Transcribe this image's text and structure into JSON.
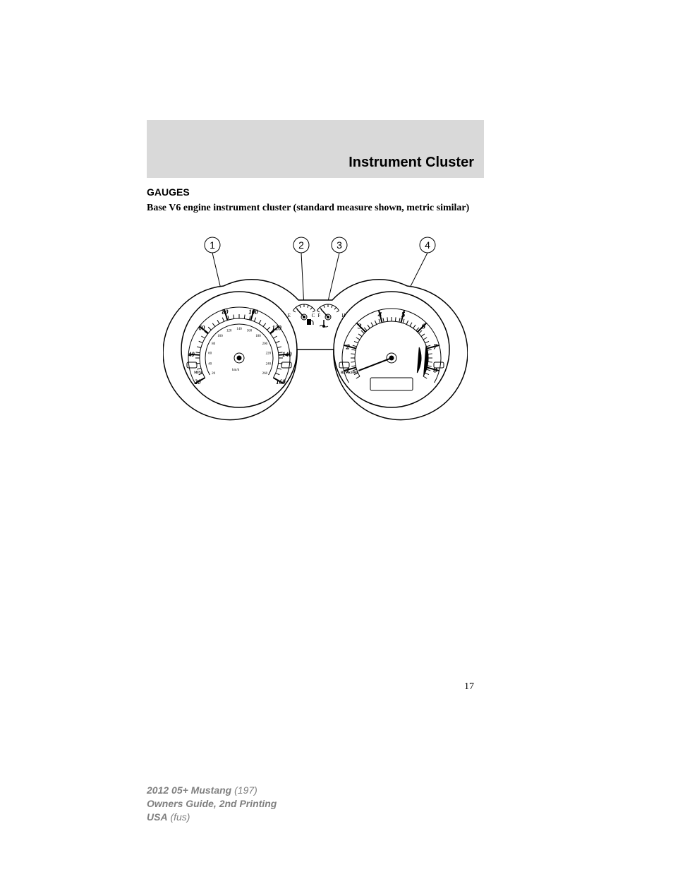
{
  "header": {
    "section_title": "Instrument Cluster"
  },
  "body": {
    "heading": "GAUGES",
    "subtitle": "Base V6 engine instrument cluster (standard measure shown, metric similar)"
  },
  "diagram": {
    "callouts": [
      "1",
      "2",
      "3",
      "4"
    ],
    "callout_positions_x": [
      70,
      196,
      250,
      375
    ],
    "callout_positions_y": [
      12,
      12,
      12,
      12
    ],
    "speedometer": {
      "major_labels": [
        "20",
        "40",
        "60",
        "80",
        "100",
        "120",
        "140",
        "160"
      ],
      "inner_labels": [
        "20",
        "40",
        "60",
        "80",
        "100",
        "120",
        "140",
        "160",
        "180",
        "200",
        "220",
        "240",
        "260"
      ],
      "unit_mph": "MPH",
      "unit_kmh": "km/h"
    },
    "tachometer": {
      "labels": [
        "1",
        "2",
        "3",
        "4",
        "5",
        "6",
        "7",
        "8"
      ],
      "unit": "RPMx1000"
    },
    "fuel_gauge": {
      "empty": "E",
      "full": "F"
    },
    "temp_gauge": {
      "cold": "C",
      "hot": "H"
    },
    "colors": {
      "stroke": "#000000",
      "bg": "#ffffff",
      "header_bg": "#d9d9d9",
      "footer_text": "#808080"
    }
  },
  "page_number": "17",
  "footer": {
    "line1_bold": "2012 05+ Mustang",
    "line1_ital": "(197)",
    "line2": "Owners Guide, 2nd Printing",
    "line3_bold": "USA",
    "line3_ital": "(fus)"
  }
}
